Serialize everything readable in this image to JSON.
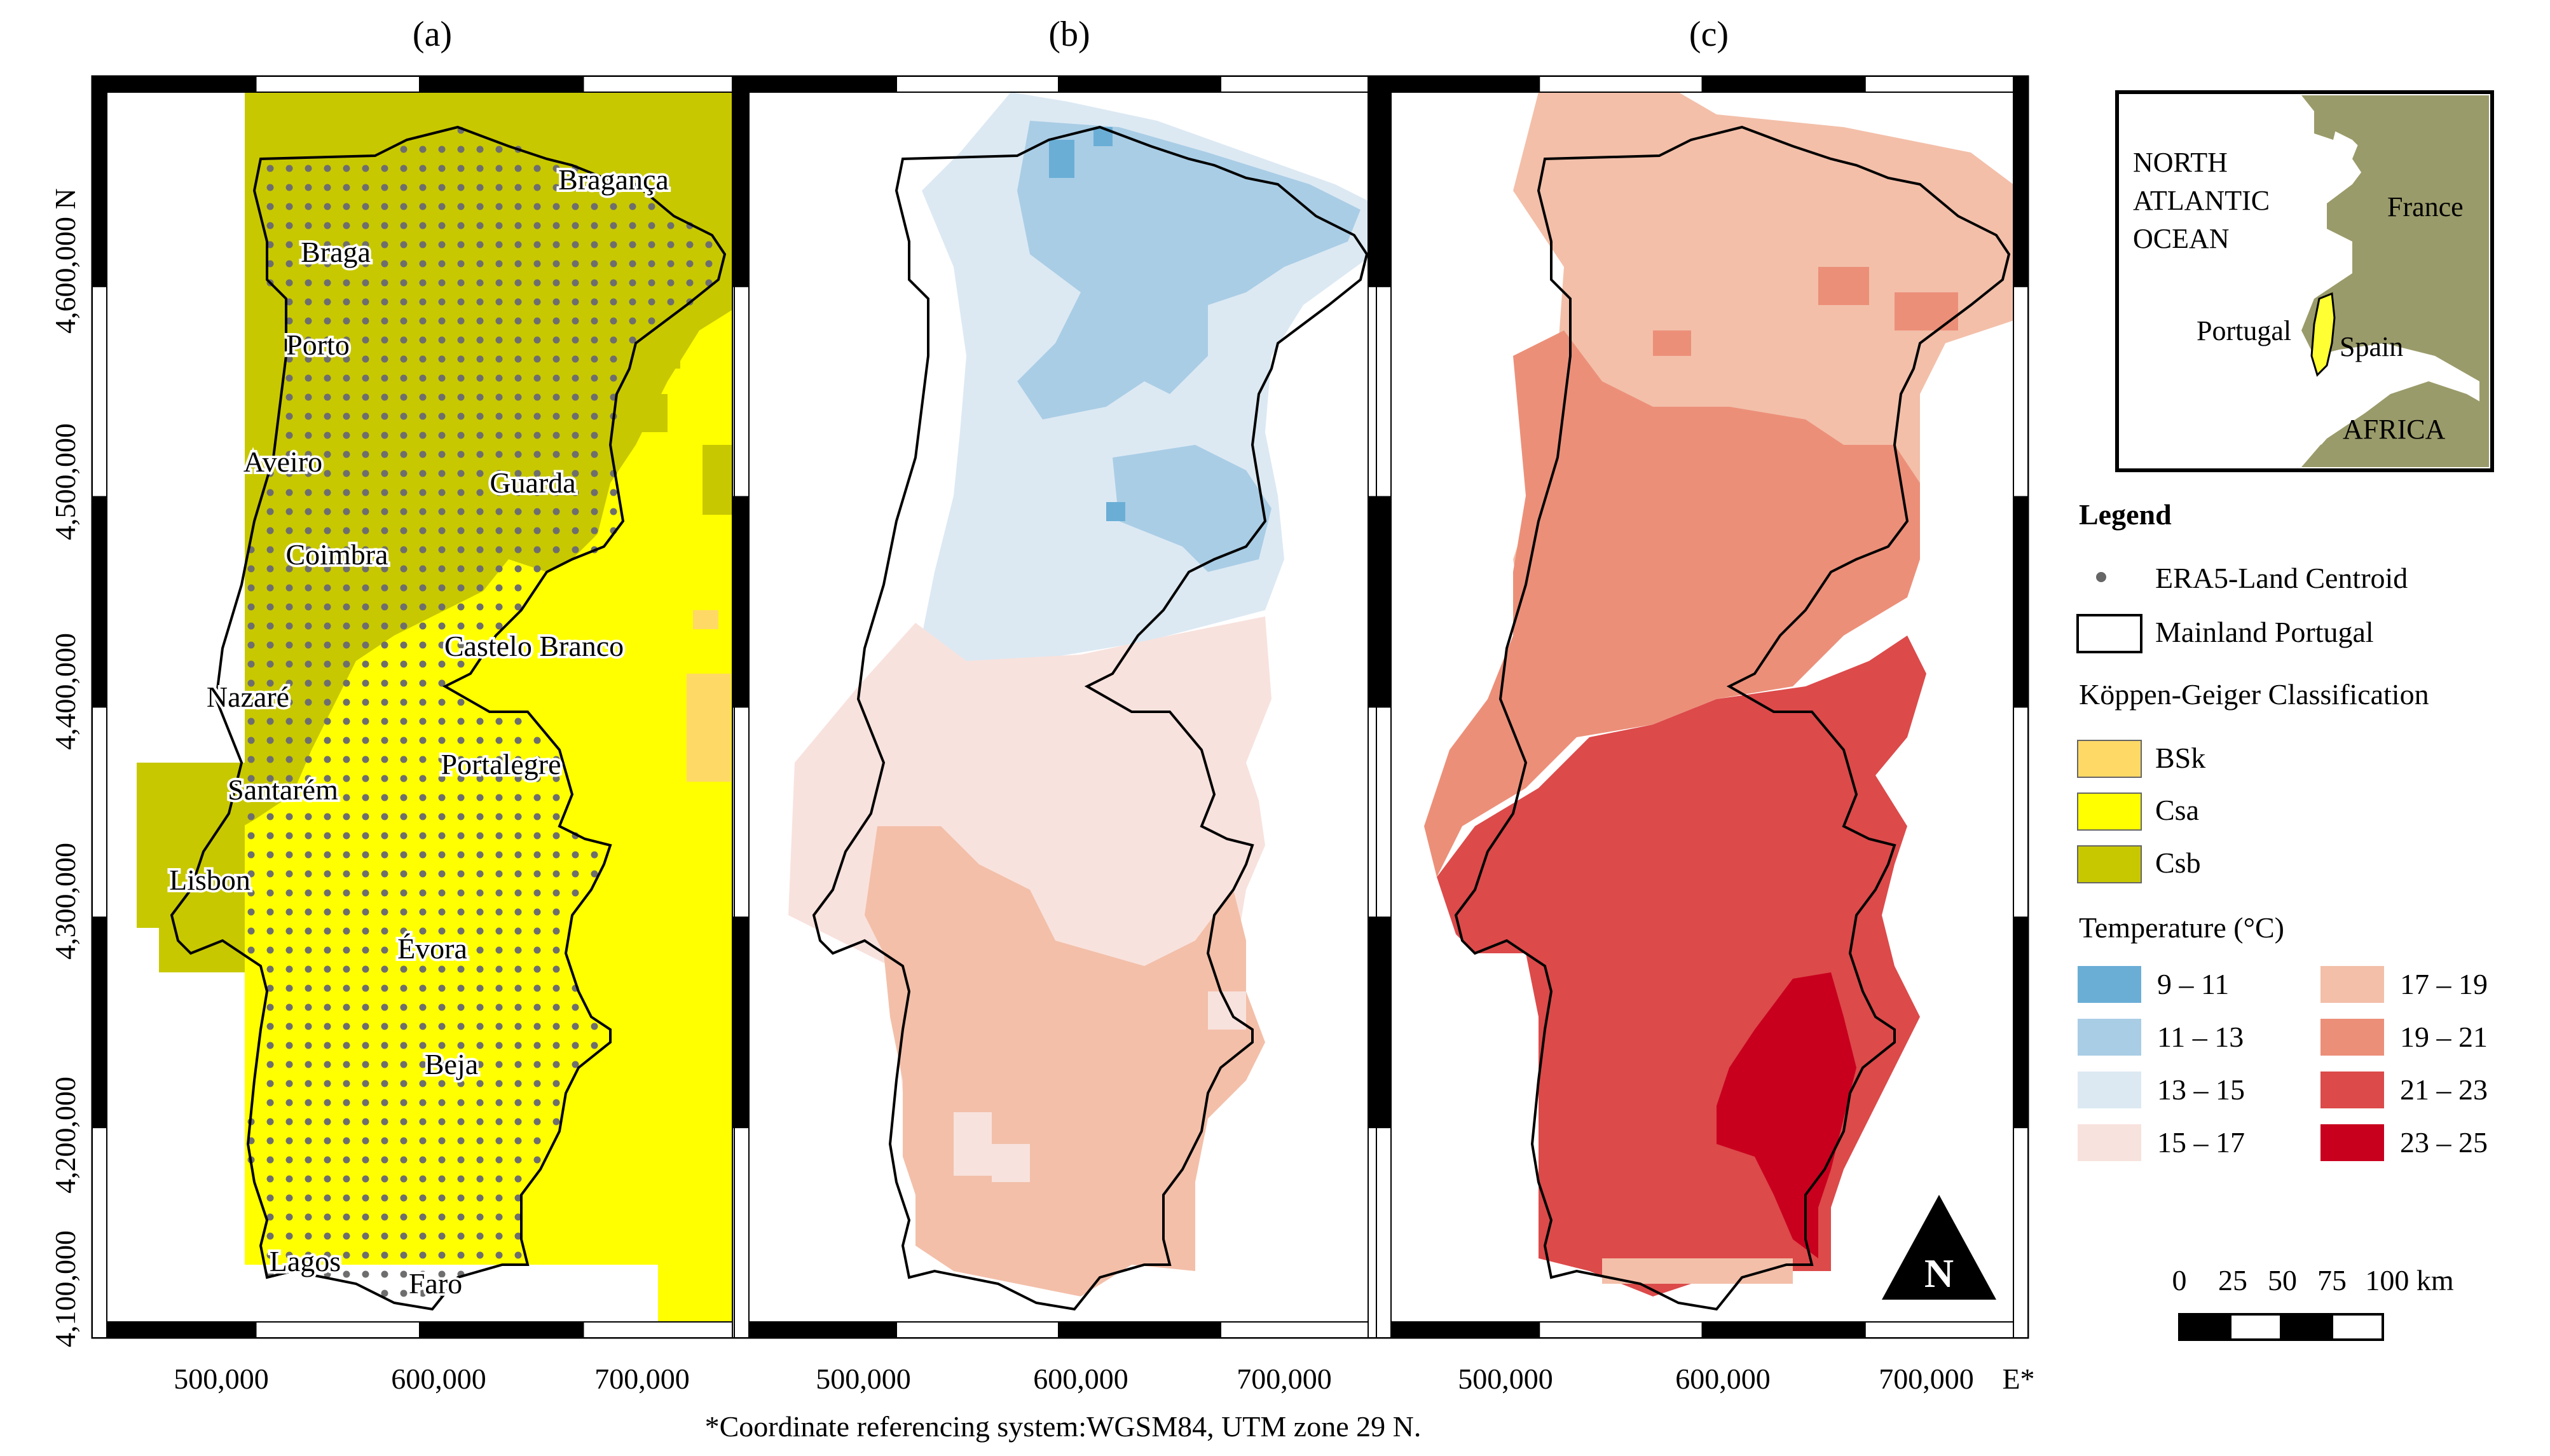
{
  "panels": [
    {
      "label": "(a)",
      "type": "koppen"
    },
    {
      "label": "(b)",
      "type": "temp-b"
    },
    {
      "label": "(c)",
      "type": "temp-c"
    }
  ],
  "y_axis_ticks": [
    "4,100,000",
    "4,200,000",
    "4,300,000",
    "4,400,000",
    "4,500,000",
    "4,600,000 N"
  ],
  "x_axis_ticks": [
    "500,000",
    "600,000",
    "700,000"
  ],
  "x_axis_last_suffix": "E*",
  "crs_note": "*Coordinate referencing system:WGSM84, UTM zone 29 N.",
  "cities": [
    "Bragança",
    "Braga",
    "Porto",
    "Aveiro",
    "Guarda",
    "Coimbra",
    "Castelo Branco",
    "Nazaré",
    "Portalegre",
    "Santarém",
    "Lisbon",
    "Évora",
    "Beja",
    "Lagos",
    "Faro"
  ],
  "inset": {
    "ocean_label": [
      "NORTH",
      "ATLANTIC",
      "OCEAN"
    ],
    "labels": [
      "France",
      "Portugal",
      "Spain",
      "AFRICA"
    ]
  },
  "legend": {
    "title": "Legend",
    "centroid": "ERA5-Land Centroid",
    "mainland": "Mainland Portugal",
    "koppen_title": "Köppen-Geiger Classification",
    "koppen": [
      {
        "label": "BSk",
        "color": "#ffd966"
      },
      {
        "label": "Csa",
        "color": "#ffff00"
      },
      {
        "label": "Csb",
        "color": "#c8c800"
      }
    ],
    "temp_title": "Temperature (°C)",
    "temp_classes": [
      {
        "label": "9 – 11",
        "color": "#6aaed6"
      },
      {
        "label": "11 – 13",
        "color": "#a9cde5"
      },
      {
        "label": "13 – 15",
        "color": "#dce9f3"
      },
      {
        "label": "15 – 17",
        "color": "#f8e2dd"
      },
      {
        "label": "17 – 19",
        "color": "#f3bfa9"
      },
      {
        "label": "19 – 21",
        "color": "#ec8f79"
      },
      {
        "label": "21 – 23",
        "color": "#dc4a4a"
      },
      {
        "label": "23 – 25",
        "color": "#c8001e"
      }
    ]
  },
  "scalebar": {
    "labels": [
      "0",
      "25",
      "50",
      "75",
      "100 km"
    ]
  },
  "north_label": "N",
  "colors": {
    "sea": "#ffffff",
    "land_inset": "#9a9b6a",
    "portugal_inset": "#ffff33"
  }
}
